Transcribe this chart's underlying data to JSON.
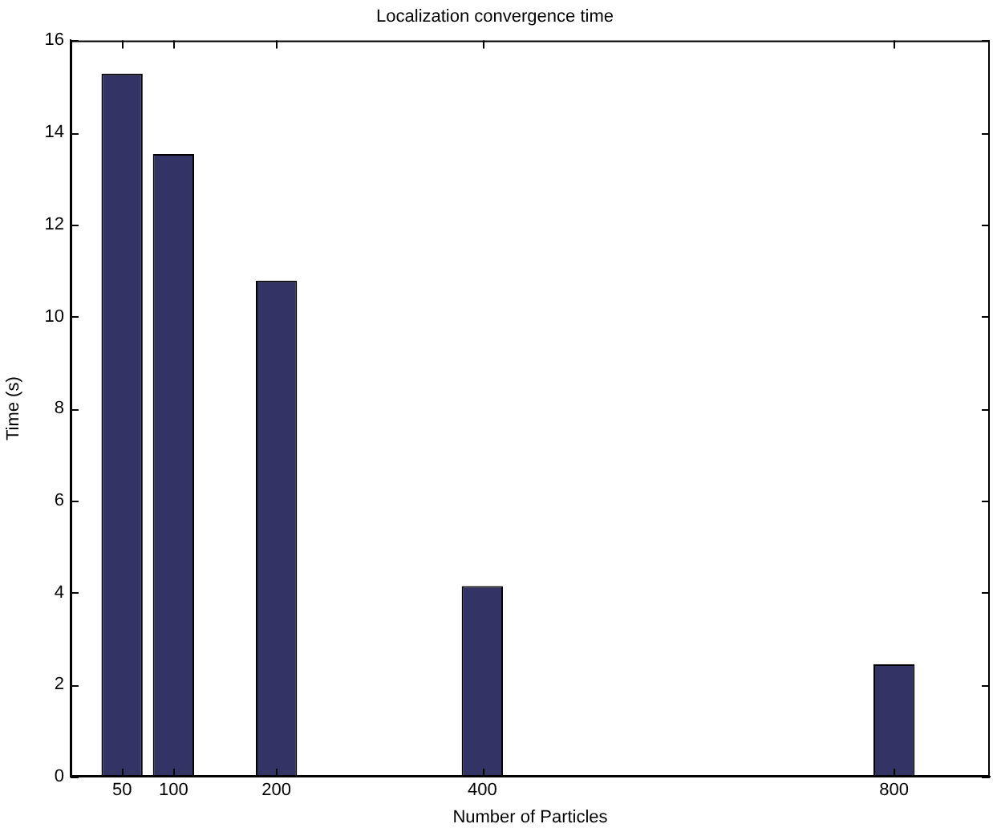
{
  "chart_data": {
    "type": "bar",
    "title": "Localization convergence time",
    "xlabel": "Number of Particles",
    "ylabel": "Time (s)",
    "x": [
      50,
      100,
      200,
      400,
      800
    ],
    "values": [
      15.28,
      13.53,
      10.78,
      4.14,
      2.44
    ],
    "color": "#333366",
    "xlim": [
      0,
      893
    ],
    "xticks": [
      50,
      100,
      200,
      400,
      800
    ],
    "ylim": [
      0,
      16
    ],
    "yticks": [
      0,
      2,
      4,
      6,
      8,
      10,
      12,
      14,
      16
    ],
    "grid": false,
    "legend": false
  }
}
